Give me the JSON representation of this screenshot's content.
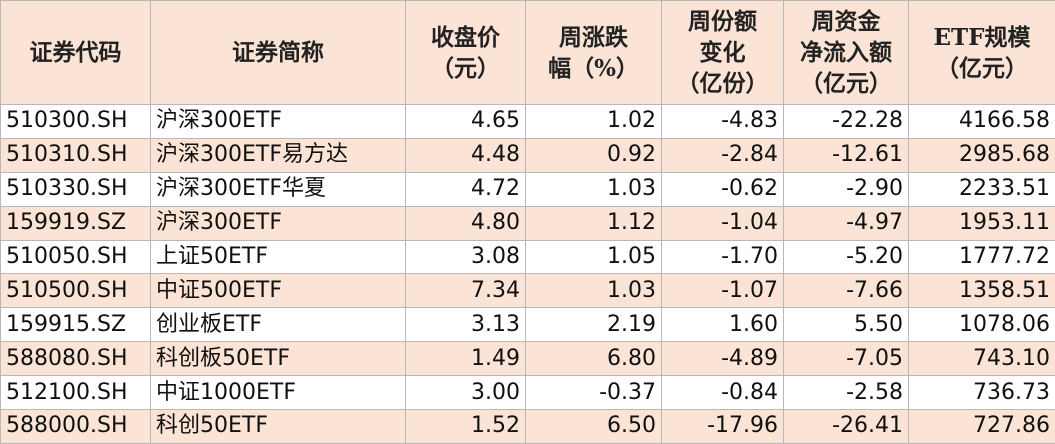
{
  "table": {
    "headers": [
      "证券代码",
      "证券简称",
      "收盘价\n（元）",
      "周涨跌\n幅（%）",
      "周份额\n变化\n（亿份）",
      "周资金\n净流入额\n（亿元）",
      "ETF规模\n（亿元）"
    ],
    "rows": [
      [
        "510300.SH",
        "沪深300ETF",
        "4.65",
        "1.02",
        "-4.83",
        "-22.28",
        "4166.58"
      ],
      [
        "510310.SH",
        "沪深300ETF易方达",
        "4.48",
        "0.92",
        "-2.84",
        "-12.61",
        "2985.68"
      ],
      [
        "510330.SH",
        "沪深300ETF华夏",
        "4.72",
        "1.03",
        "-0.62",
        "-2.90",
        "2233.51"
      ],
      [
        "159919.SZ",
        "沪深300ETF",
        "4.80",
        "1.12",
        "-1.04",
        "-4.97",
        "1953.11"
      ],
      [
        "510050.SH",
        "上证50ETF",
        "3.08",
        "1.05",
        "-1.70",
        "-5.20",
        "1777.72"
      ],
      [
        "510500.SH",
        "中证500ETF",
        "7.34",
        "1.03",
        "-1.07",
        "-7.66",
        "1358.51"
      ],
      [
        "159915.SZ",
        "创业板ETF",
        "3.13",
        "2.19",
        "1.60",
        "5.50",
        "1078.06"
      ],
      [
        "588080.SH",
        "科创板50ETF",
        "1.49",
        "6.80",
        "-4.89",
        "-7.05",
        "743.10"
      ],
      [
        "512100.SH",
        "中证1000ETF",
        "3.00",
        "-0.37",
        "-0.84",
        "-2.58",
        "736.73"
      ],
      [
        "588000.SH",
        "科创50ETF",
        "1.52",
        "6.50",
        "-17.96",
        "-26.41",
        "727.86"
      ]
    ]
  },
  "colors": {
    "header_bg": "#fbe4d5",
    "stripe_bg": "#fbe4d5",
    "row_bg": "#ffffff",
    "grid": "#b8b8b8"
  }
}
